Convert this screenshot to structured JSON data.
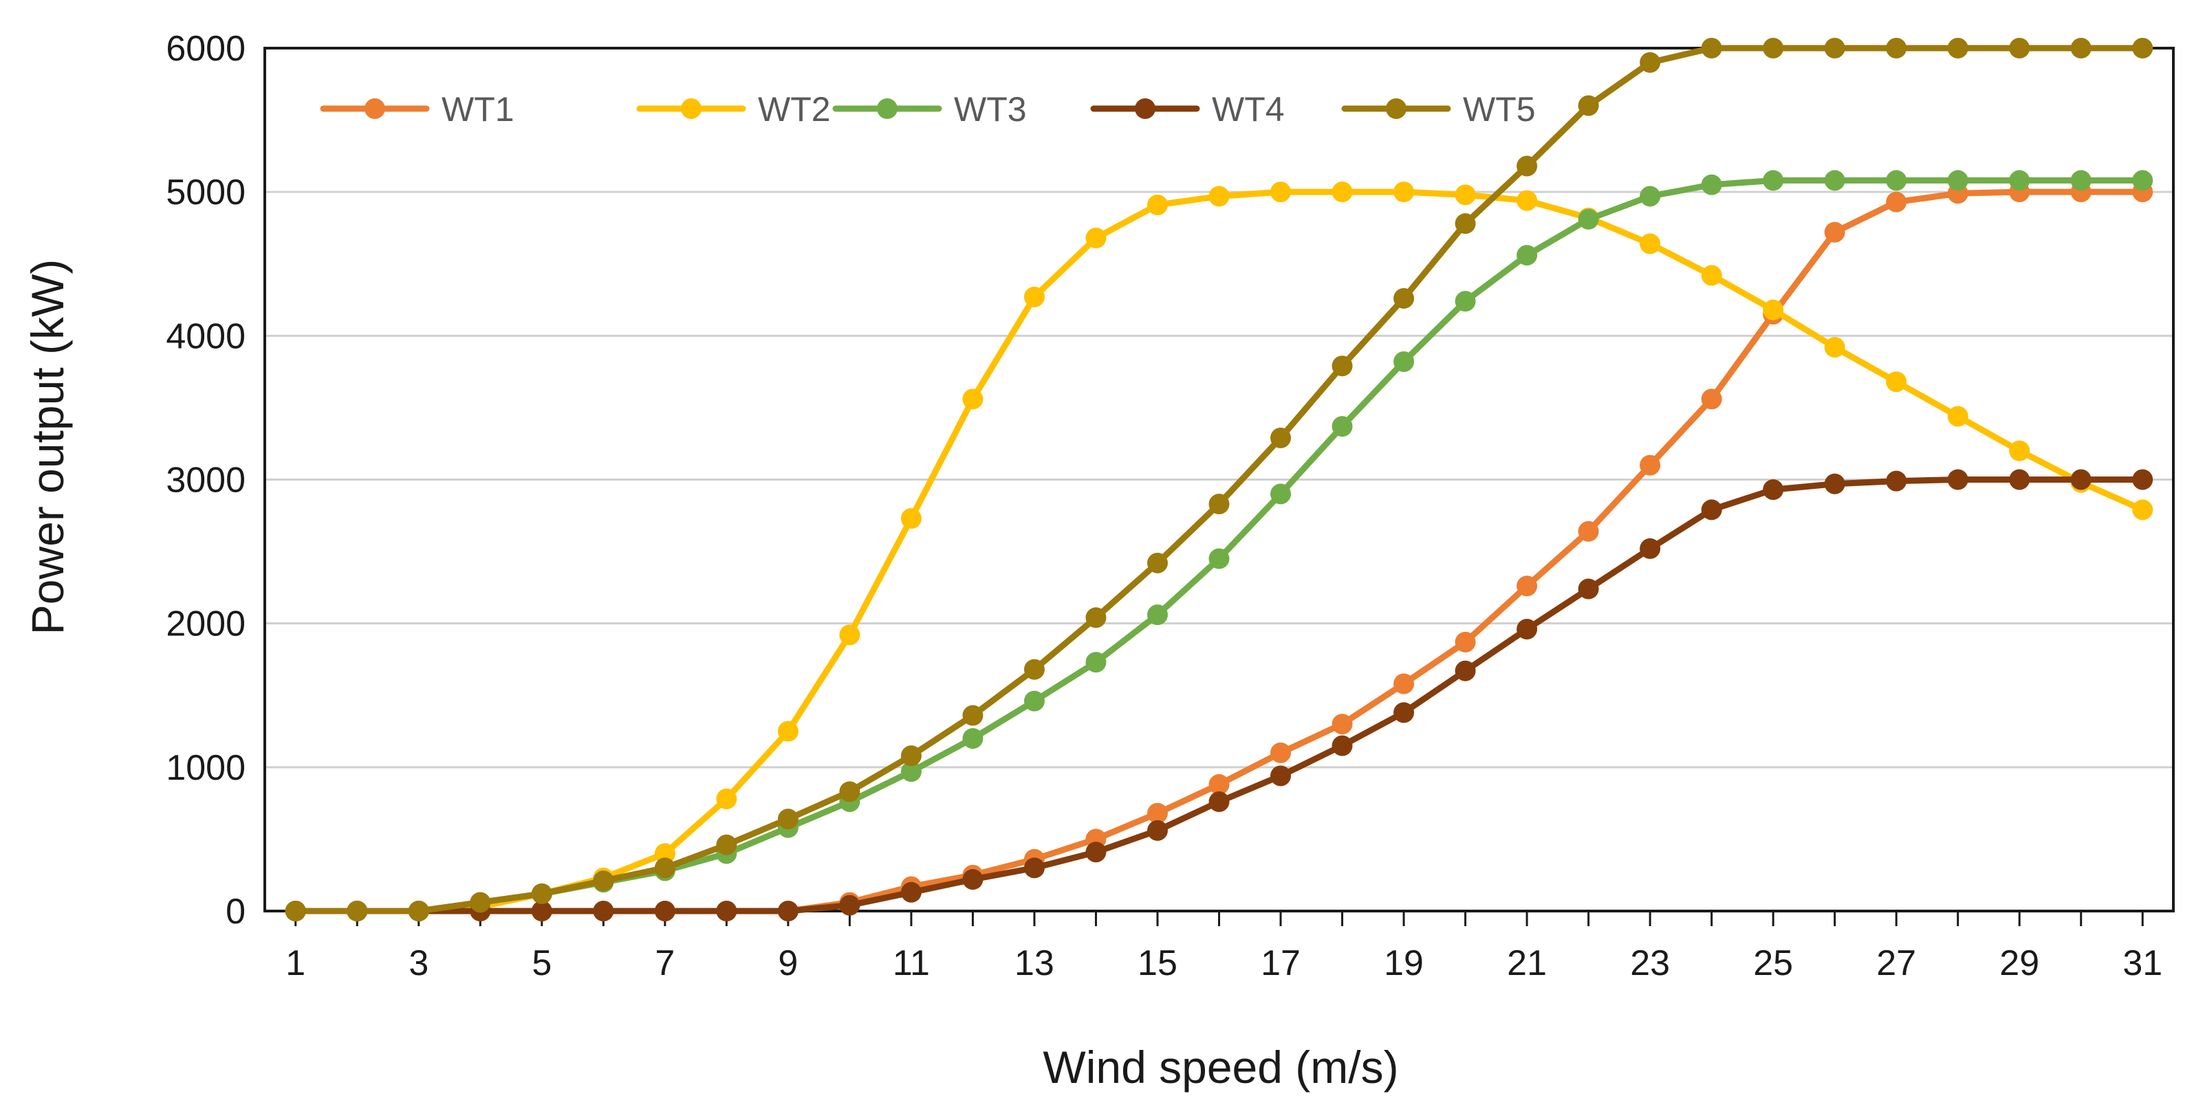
{
  "chart_data": {
    "type": "line",
    "title": "",
    "xlabel": "Wind speed (m/s)",
    "ylabel": "Power output (kW)",
    "x": [
      1,
      2,
      3,
      4,
      5,
      6,
      7,
      8,
      9,
      10,
      11,
      12,
      13,
      14,
      15,
      16,
      17,
      18,
      19,
      20,
      21,
      22,
      23,
      24,
      25,
      26,
      27,
      28,
      29,
      30,
      31
    ],
    "xlim": [
      1,
      31
    ],
    "xticks": [
      1,
      3,
      5,
      7,
      9,
      11,
      13,
      15,
      17,
      19,
      21,
      23,
      25,
      27,
      29,
      31
    ],
    "ylim": [
      0,
      6000
    ],
    "yticks": [
      0,
      1000,
      2000,
      3000,
      4000,
      5000,
      6000
    ],
    "grid": "horizontal",
    "legend_position": "top-left",
    "series": [
      {
        "name": "WT1",
        "color": "#ED7D31",
        "values": [
          0,
          0,
          0,
          0,
          0,
          0,
          0,
          0,
          0,
          60,
          170,
          250,
          360,
          500,
          680,
          880,
          1100,
          1300,
          1580,
          1870,
          2260,
          2640,
          3100,
          3560,
          4150,
          4720,
          4930,
          4990,
          5000,
          5000,
          5000
        ]
      },
      {
        "name": "WT2",
        "color": "#FFC000",
        "values": [
          0,
          0,
          0,
          30,
          120,
          230,
          400,
          780,
          1250,
          1920,
          2730,
          3560,
          4270,
          4680,
          4910,
          4970,
          5000,
          5000,
          5000,
          4980,
          4940,
          4820,
          4640,
          4420,
          4180,
          3920,
          3680,
          3440,
          3200,
          2980,
          2790
        ]
      },
      {
        "name": "WT3",
        "color": "#70AD47",
        "values": [
          0,
          0,
          0,
          60,
          120,
          200,
          280,
          400,
          580,
          760,
          970,
          1200,
          1460,
          1730,
          2060,
          2450,
          2900,
          3370,
          3820,
          4240,
          4560,
          4810,
          4970,
          5050,
          5080,
          5080,
          5080,
          5080,
          5080,
          5080,
          5080
        ]
      },
      {
        "name": "WT4",
        "color": "#843C0C",
        "values": [
          0,
          0,
          0,
          0,
          0,
          0,
          0,
          0,
          0,
          40,
          130,
          220,
          300,
          410,
          560,
          760,
          940,
          1150,
          1380,
          1670,
          1960,
          2240,
          2520,
          2790,
          2930,
          2970,
          2990,
          3000,
          3000,
          3000,
          3000
        ]
      },
      {
        "name": "WT5",
        "color": "#9C7A0C",
        "values": [
          0,
          0,
          0,
          60,
          120,
          210,
          300,
          460,
          640,
          830,
          1080,
          1360,
          1680,
          2040,
          2420,
          2830,
          3290,
          3790,
          4260,
          4780,
          5180,
          5600,
          5900,
          6000,
          6000,
          6000,
          6000,
          6000,
          6000,
          6000,
          6000
        ]
      }
    ]
  }
}
